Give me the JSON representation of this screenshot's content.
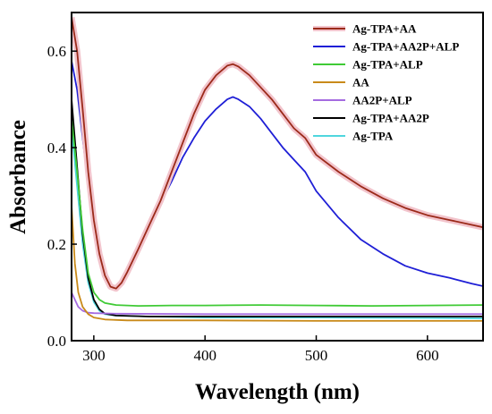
{
  "chart_data": {
    "type": "line",
    "xlabel": "Wavelength (nm)",
    "ylabel": "Absorbance",
    "xlim": [
      280,
      650
    ],
    "ylim": [
      0,
      0.68
    ],
    "x_ticks": [
      300,
      400,
      500,
      600
    ],
    "y_ticks": [
      0.0,
      0.2,
      0.4,
      0.6
    ],
    "x_tick_labels": [
      "300",
      "400",
      "500",
      "600"
    ],
    "y_tick_labels": [
      "0.0",
      "0.2",
      "0.4",
      "0.6"
    ],
    "grid": false,
    "legend_position": "top-right",
    "series": [
      {
        "name": "Ag-TPA+AA",
        "color": "#9b2a1a",
        "halo": "#f2c4cc",
        "points": [
          [
            280,
            0.67
          ],
          [
            285,
            0.6
          ],
          [
            290,
            0.48
          ],
          [
            295,
            0.35
          ],
          [
            300,
            0.25
          ],
          [
            305,
            0.18
          ],
          [
            310,
            0.135
          ],
          [
            315,
            0.112
          ],
          [
            320,
            0.108
          ],
          [
            325,
            0.12
          ],
          [
            330,
            0.142
          ],
          [
            340,
            0.19
          ],
          [
            350,
            0.24
          ],
          [
            360,
            0.29
          ],
          [
            370,
            0.35
          ],
          [
            380,
            0.41
          ],
          [
            390,
            0.47
          ],
          [
            400,
            0.52
          ],
          [
            410,
            0.55
          ],
          [
            420,
            0.57
          ],
          [
            425,
            0.573
          ],
          [
            430,
            0.568
          ],
          [
            440,
            0.55
          ],
          [
            450,
            0.525
          ],
          [
            460,
            0.5
          ],
          [
            470,
            0.47
          ],
          [
            480,
            0.44
          ],
          [
            490,
            0.42
          ],
          [
            500,
            0.385
          ],
          [
            520,
            0.35
          ],
          [
            540,
            0.32
          ],
          [
            560,
            0.295
          ],
          [
            580,
            0.275
          ],
          [
            600,
            0.26
          ],
          [
            620,
            0.25
          ],
          [
            640,
            0.24
          ],
          [
            650,
            0.235
          ]
        ]
      },
      {
        "name": "Ag-TPA+AA2P+ALP",
        "color": "#1f1fd6",
        "points": [
          [
            280,
            0.58
          ],
          [
            285,
            0.52
          ],
          [
            290,
            0.42
          ],
          [
            295,
            0.32
          ],
          [
            300,
            0.24
          ],
          [
            305,
            0.17
          ],
          [
            310,
            0.13
          ],
          [
            315,
            0.11
          ],
          [
            320,
            0.108
          ],
          [
            325,
            0.118
          ],
          [
            330,
            0.138
          ],
          [
            340,
            0.185
          ],
          [
            350,
            0.235
          ],
          [
            360,
            0.285
          ],
          [
            370,
            0.33
          ],
          [
            380,
            0.38
          ],
          [
            390,
            0.42
          ],
          [
            400,
            0.455
          ],
          [
            410,
            0.48
          ],
          [
            420,
            0.5
          ],
          [
            425,
            0.505
          ],
          [
            430,
            0.5
          ],
          [
            440,
            0.485
          ],
          [
            450,
            0.46
          ],
          [
            460,
            0.43
          ],
          [
            470,
            0.4
          ],
          [
            480,
            0.375
          ],
          [
            490,
            0.35
          ],
          [
            500,
            0.31
          ],
          [
            520,
            0.255
          ],
          [
            540,
            0.21
          ],
          [
            560,
            0.18
          ],
          [
            580,
            0.155
          ],
          [
            600,
            0.14
          ],
          [
            620,
            0.13
          ],
          [
            640,
            0.118
          ],
          [
            650,
            0.113
          ]
        ]
      },
      {
        "name": "Ag-TPA+ALP",
        "color": "#3fca35",
        "points": [
          [
            280,
            0.46
          ],
          [
            285,
            0.35
          ],
          [
            290,
            0.23
          ],
          [
            295,
            0.14
          ],
          [
            300,
            0.1
          ],
          [
            305,
            0.085
          ],
          [
            310,
            0.078
          ],
          [
            320,
            0.074
          ],
          [
            340,
            0.072
          ],
          [
            370,
            0.073
          ],
          [
            400,
            0.073
          ],
          [
            450,
            0.074
          ],
          [
            500,
            0.073
          ],
          [
            550,
            0.072
          ],
          [
            600,
            0.073
          ],
          [
            650,
            0.074
          ]
        ]
      },
      {
        "name": "AA",
        "color": "#c98a1a",
        "points": [
          [
            280,
            0.28
          ],
          [
            283,
            0.16
          ],
          [
            286,
            0.1
          ],
          [
            290,
            0.07
          ],
          [
            295,
            0.055
          ],
          [
            300,
            0.048
          ],
          [
            310,
            0.044
          ],
          [
            330,
            0.042
          ],
          [
            400,
            0.042
          ],
          [
            500,
            0.041
          ],
          [
            600,
            0.041
          ],
          [
            650,
            0.041
          ]
        ]
      },
      {
        "name": "AA2P+ALP",
        "color": "#a56be0",
        "points": [
          [
            280,
            0.1
          ],
          [
            283,
            0.085
          ],
          [
            286,
            0.07
          ],
          [
            290,
            0.062
          ],
          [
            295,
            0.058
          ],
          [
            300,
            0.057
          ],
          [
            320,
            0.056
          ],
          [
            400,
            0.055
          ],
          [
            500,
            0.055
          ],
          [
            600,
            0.055
          ],
          [
            650,
            0.055
          ]
        ]
      },
      {
        "name": "Ag-TPA+AA2P",
        "color": "#000000",
        "points": [
          [
            280,
            0.5
          ],
          [
            285,
            0.36
          ],
          [
            290,
            0.22
          ],
          [
            295,
            0.13
          ],
          [
            300,
            0.085
          ],
          [
            305,
            0.065
          ],
          [
            310,
            0.056
          ],
          [
            320,
            0.052
          ],
          [
            350,
            0.05
          ],
          [
            400,
            0.05
          ],
          [
            500,
            0.05
          ],
          [
            600,
            0.05
          ],
          [
            650,
            0.05
          ]
        ]
      },
      {
        "name": "Ag-TPA",
        "color": "#4fd6de",
        "points": [
          [
            280,
            0.44
          ],
          [
            285,
            0.32
          ],
          [
            290,
            0.2
          ],
          [
            295,
            0.12
          ],
          [
            300,
            0.08
          ],
          [
            305,
            0.062
          ],
          [
            310,
            0.055
          ],
          [
            320,
            0.052
          ],
          [
            350,
            0.05
          ],
          [
            400,
            0.048
          ],
          [
            500,
            0.048
          ],
          [
            600,
            0.047
          ],
          [
            650,
            0.046
          ]
        ]
      }
    ]
  }
}
